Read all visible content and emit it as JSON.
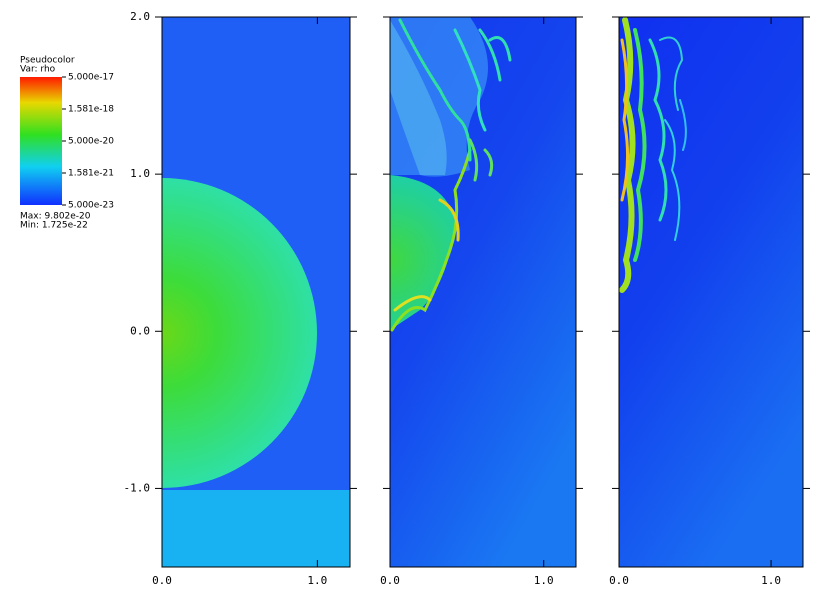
{
  "chart_data": [
    {
      "type": "pseudocolor",
      "xlim": [
        0,
        1.21
      ],
      "ylim": [
        -1.5,
        2.0
      ],
      "xticks": [
        {
          "value": 0,
          "label": "0.0"
        },
        {
          "value": 1,
          "label": "1.0"
        }
      ],
      "yticks": [
        {
          "value": -1,
          "label": "-1.0"
        },
        {
          "value": 0,
          "label": "0.0"
        },
        {
          "value": 1,
          "label": "1.0"
        },
        {
          "value": 2,
          "label": "2.0"
        }
      ],
      "legend": {
        "title": "Pseudocolor",
        "variable": "Var: rho",
        "log": true,
        "range": [
          5e-23,
          5e-17
        ],
        "ticks": [
          {
            "value": 5e-17,
            "label": "5.000e-17"
          },
          {
            "value": 1.581e-18,
            "label": "1.581e-18"
          },
          {
            "value": 5e-20,
            "label": "5.000e-20"
          },
          {
            "value": 1.581e-21,
            "label": "1.581e-21"
          },
          {
            "value": 5e-23,
            "label": "5.000e-23"
          }
        ],
        "max": "Max: 9.802e-20",
        "min": "Min: 1.725e-22"
      }
    },
    {
      "type": "pseudocolor",
      "xlim": [
        0,
        1.21
      ],
      "ylim": [
        -1.5,
        2.0
      ],
      "xticks": [
        {
          "value": 0,
          "label": "0.0"
        },
        {
          "value": 1,
          "label": "1.0"
        }
      ]
    },
    {
      "type": "pseudocolor",
      "xlim": [
        0,
        1.21
      ],
      "ylim": [
        -1.5,
        2.0
      ],
      "xticks": [
        {
          "value": 0,
          "label": "0.0"
        },
        {
          "value": 1,
          "label": "1.0"
        }
      ]
    }
  ]
}
